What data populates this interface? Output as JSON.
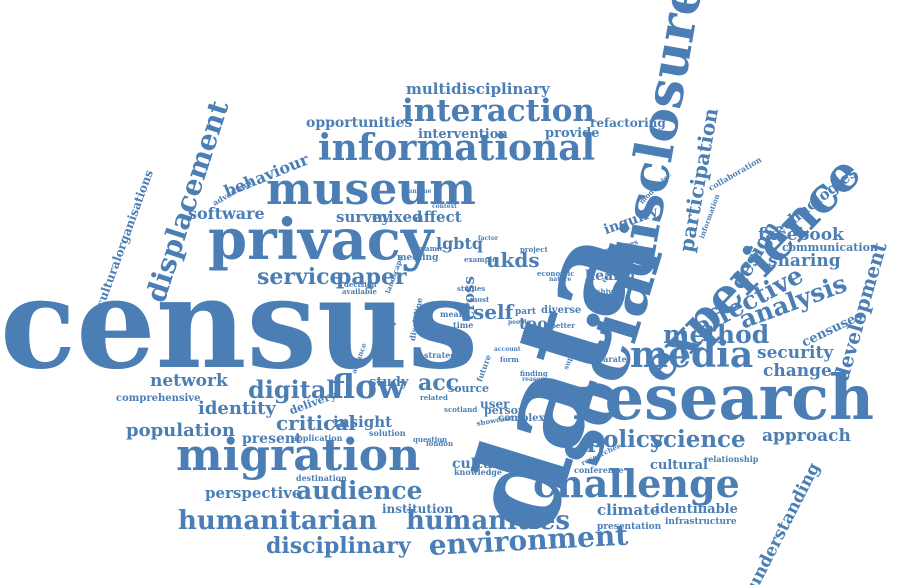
{
  "colors": {
    "word": "#4a7eb5",
    "background": "#ffffff"
  },
  "words": [
    {
      "text": "census"
    },
    {
      "text": "data"
    },
    {
      "text": "social"
    },
    {
      "text": "disclosure"
    },
    {
      "text": "experience"
    },
    {
      "text": "research"
    },
    {
      "text": "privacy"
    },
    {
      "text": "museum"
    },
    {
      "text": "informational"
    },
    {
      "text": "interaction"
    },
    {
      "text": "multidisciplinary"
    },
    {
      "text": "migration"
    },
    {
      "text": "challenge"
    },
    {
      "text": "media"
    },
    {
      "text": "environment"
    },
    {
      "text": "humanitarian"
    },
    {
      "text": "humanities"
    },
    {
      "text": "audience"
    },
    {
      "text": "flow"
    },
    {
      "text": "displacement"
    },
    {
      "text": "disciplinary"
    },
    {
      "text": "policy"
    },
    {
      "text": "science"
    },
    {
      "text": "method"
    },
    {
      "text": "affective"
    },
    {
      "text": "analysis"
    },
    {
      "text": "development"
    },
    {
      "text": "participation"
    },
    {
      "text": "design"
    },
    {
      "text": "security"
    },
    {
      "text": "change"
    },
    {
      "text": "approach"
    },
    {
      "text": "understanding"
    },
    {
      "text": "facebook"
    },
    {
      "text": "sharing"
    },
    {
      "text": "communication"
    },
    {
      "text": "technologies"
    },
    {
      "text": "censuses"
    },
    {
      "text": "behaviour"
    },
    {
      "text": "software"
    },
    {
      "text": "service"
    },
    {
      "text": "paper"
    },
    {
      "text": "mixed"
    },
    {
      "text": "affect"
    },
    {
      "text": "survey"
    },
    {
      "text": "lgbtq"
    },
    {
      "text": "ukds"
    },
    {
      "text": "self"
    },
    {
      "text": "tool"
    },
    {
      "text": "health"
    },
    {
      "text": "digital"
    },
    {
      "text": "network"
    },
    {
      "text": "identity"
    },
    {
      "text": "critical"
    },
    {
      "text": "insight"
    },
    {
      "text": "population"
    },
    {
      "text": "present"
    },
    {
      "text": "perspective"
    },
    {
      "text": "acc"
    },
    {
      "text": "study"
    },
    {
      "text": "culture"
    },
    {
      "text": "cultural"
    },
    {
      "text": "climate"
    },
    {
      "text": "identifiable"
    },
    {
      "text": "institution"
    },
    {
      "text": "opportunities"
    },
    {
      "text": "intervention"
    },
    {
      "text": "provide"
    },
    {
      "text": "refactoring"
    },
    {
      "text": "inquiry"
    },
    {
      "text": "culturalorganisations"
    },
    {
      "text": "comprehensive"
    },
    {
      "text": "delivery"
    },
    {
      "text": "person"
    },
    {
      "text": "user"
    },
    {
      "text": "source"
    },
    {
      "text": "complex"
    },
    {
      "text": "solution"
    },
    {
      "text": "application"
    },
    {
      "text": "question"
    },
    {
      "text": "knowledge"
    },
    {
      "text": "destination"
    },
    {
      "text": "conference"
    },
    {
      "text": "presentation"
    },
    {
      "text": "infrastructure"
    },
    {
      "text": "relationship"
    },
    {
      "text": "researcher"
    },
    {
      "text": "collaboration"
    },
    {
      "text": "information"
    },
    {
      "text": "modernise"
    },
    {
      "text": "processes"
    },
    {
      "text": "advantage"
    },
    {
      "text": "dynamic"
    },
    {
      "text": "meeting"
    },
    {
      "text": "decision"
    },
    {
      "text": "available"
    },
    {
      "text": "landscape"
    },
    {
      "text": "project"
    },
    {
      "text": "example"
    },
    {
      "text": "economic"
    },
    {
      "text": "nature"
    },
    {
      "text": "cross"
    },
    {
      "text": "time"
    },
    {
      "text": "mean"
    },
    {
      "text": "pooled"
    },
    {
      "text": "strategy"
    },
    {
      "text": "discipline"
    },
    {
      "text": "advance"
    },
    {
      "text": "related"
    },
    {
      "text": "scotland"
    },
    {
      "text": "showcase"
    },
    {
      "text": "future"
    },
    {
      "text": "evidence"
    },
    {
      "text": "range"
    },
    {
      "text": "better"
    },
    {
      "text": "separate"
    },
    {
      "text": "diverse"
    },
    {
      "text": "finding"
    },
    {
      "text": "reason"
    },
    {
      "text": "variety"
    },
    {
      "text": "archive"
    },
    {
      "text": "context"
    },
    {
      "text": "unique"
    },
    {
      "text": "factor"
    },
    {
      "text": "part"
    },
    {
      "text": "people"
    },
    {
      "text": "studies"
    },
    {
      "text": "most"
    },
    {
      "text": "london"
    },
    {
      "text": "form"
    },
    {
      "text": "account"
    },
    {
      "text": "support"
    },
    {
      "text": "creative"
    }
  ]
}
